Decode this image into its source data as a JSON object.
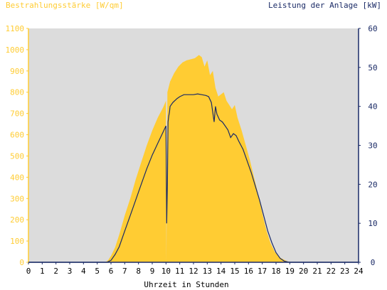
{
  "chart_data": {
    "type": "area",
    "left_axis_label": "Bestrahlungsstärke [W/qm]",
    "right_axis_label": "Leistung der Anlage [kW]",
    "xlabel": "Uhrzeit in Stunden",
    "xlim": [
      0,
      24
    ],
    "ylim_left": [
      0,
      1100
    ],
    "ylim_right": [
      0,
      60
    ],
    "x_ticks": [
      "0",
      "1",
      "2",
      "3",
      "4",
      "5",
      "6",
      "7",
      "8",
      "9",
      "10",
      "11",
      "12",
      "13",
      "14",
      "15",
      "16",
      "17",
      "18",
      "19",
      "20",
      "21",
      "22",
      "23",
      "24"
    ],
    "y_left_ticks": [
      "0",
      "100",
      "200",
      "300",
      "400",
      "500",
      "600",
      "700",
      "800",
      "900",
      "1000",
      "1100"
    ],
    "y_right_ticks": [
      "0",
      "10",
      "20",
      "30",
      "40",
      "50",
      "60"
    ],
    "grid": false,
    "colors": {
      "plot_background": "#dcdcdc",
      "irradiance_fill": "#ffcc33",
      "power_line": "#1a2a66",
      "left_axis_text": "#ffcc33",
      "right_axis_text": "#1a2a66",
      "x_axis_text": "#000000"
    },
    "series": [
      {
        "axis": "left",
        "style": "area",
        "x": [
          0,
          5.6,
          5.8,
          6.0,
          6.3,
          6.6,
          7.0,
          7.4,
          7.8,
          8.2,
          8.6,
          9.0,
          9.4,
          9.8,
          10.0,
          10.03,
          10.1,
          10.3,
          10.6,
          10.9,
          11.2,
          11.5,
          11.8,
          12.1,
          12.4,
          12.6,
          12.8,
          13.0,
          13.2,
          13.4,
          13.6,
          13.8,
          14.0,
          14.2,
          14.4,
          14.6,
          14.8,
          15.0,
          15.2,
          15.5,
          15.8,
          16.1,
          16.4,
          16.7,
          17.0,
          17.3,
          17.6,
          17.9,
          18.2,
          18.5,
          18.8,
          19.0,
          24
        ],
        "values": [
          0,
          0,
          10,
          30,
          70,
          130,
          220,
          300,
          390,
          470,
          550,
          620,
          680,
          730,
          760,
          0,
          800,
          850,
          890,
          920,
          940,
          950,
          955,
          960,
          975,
          965,
          920,
          950,
          880,
          900,
          820,
          780,
          790,
          800,
          760,
          740,
          720,
          740,
          680,
          620,
          550,
          480,
          400,
          320,
          230,
          150,
          90,
          50,
          25,
          15,
          5,
          0,
          0
        ]
      },
      {
        "axis": "right",
        "style": "line",
        "x": [
          0,
          5.7,
          6.0,
          6.3,
          6.6,
          7.0,
          7.4,
          7.8,
          8.2,
          8.6,
          9.0,
          9.4,
          9.8,
          10.0,
          10.05,
          10.1,
          10.15,
          10.2,
          10.25,
          10.3,
          10.5,
          10.8,
          11.0,
          11.3,
          11.6,
          12.0,
          12.3,
          12.6,
          12.9,
          13.1,
          13.3,
          13.5,
          13.6,
          13.7,
          13.9,
          14.1,
          14.3,
          14.5,
          14.7,
          14.9,
          15.1,
          15.3,
          15.6,
          15.9,
          16.2,
          16.5,
          16.8,
          17.1,
          17.4,
          17.7,
          18.0,
          18.3,
          18.6,
          18.9,
          19.0,
          24
        ],
        "values": [
          0,
          0,
          0.5,
          2,
          4,
          8,
          12,
          16,
          20,
          24,
          27.5,
          30.5,
          33.5,
          35,
          10,
          20,
          36,
          37.5,
          38.5,
          40,
          41,
          42,
          42.5,
          43,
          43,
          43,
          43.2,
          43,
          42.8,
          42.5,
          41,
          36,
          40,
          38,
          36.5,
          36,
          35,
          34,
          32,
          33,
          32.5,
          31,
          29,
          26,
          23,
          19.5,
          16,
          12,
          8,
          5,
          2.5,
          1,
          0.3,
          0.05,
          0,
          0
        ]
      }
    ]
  }
}
